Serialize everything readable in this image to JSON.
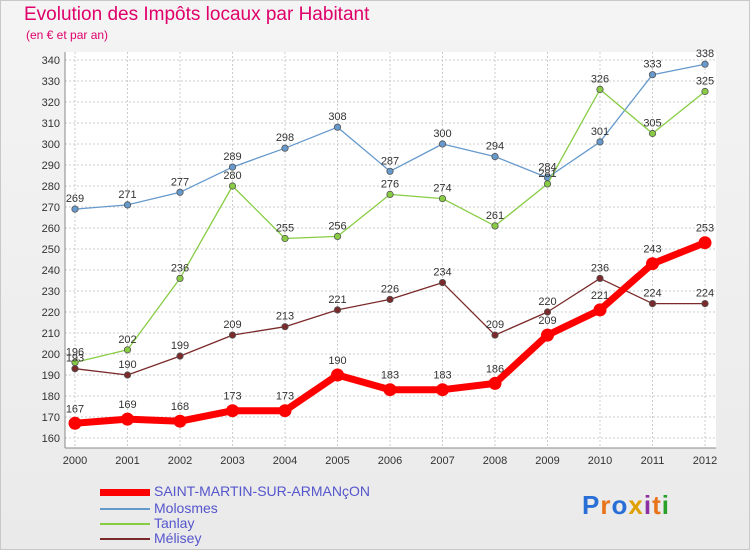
{
  "header": {
    "title": "Evolution des Impôts locaux par Habitant",
    "subtitle": "(en € et par an)"
  },
  "logo": {
    "text": "Proxiti"
  },
  "colors": {
    "title": "#e0006a",
    "main": "#ff0000",
    "molosmes": "#6699cc",
    "tanlay": "#88cc44",
    "melisey": "#7a2a2a",
    "grid": "#cccccc"
  },
  "chart_data": {
    "type": "line",
    "title": "Evolution des Impôts locaux par Habitant",
    "subtitle": "(en € et par an)",
    "xlabel": "",
    "ylabel": "",
    "ylim": [
      160,
      340
    ],
    "yticks": [
      160,
      170,
      180,
      190,
      200,
      210,
      220,
      230,
      240,
      250,
      260,
      270,
      280,
      290,
      300,
      310,
      320,
      330,
      340
    ],
    "x": [
      "2000",
      "2001",
      "2002",
      "2003",
      "2004",
      "2005",
      "2006",
      "2007",
      "2008",
      "2009",
      "2010",
      "2011",
      "2012"
    ],
    "grid": true,
    "legend_position": "bottom-left",
    "series": [
      {
        "name": "SAINT-MARTIN-SUR-ARMANçON",
        "color": "#ff0000",
        "values": [
          167,
          169,
          168,
          173,
          173,
          190,
          183,
          183,
          186,
          209,
          221,
          243,
          253
        ]
      },
      {
        "name": "Molosmes",
        "color": "#6699cc",
        "values": [
          269,
          271,
          277,
          289,
          298,
          308,
          287,
          300,
          294,
          284,
          301,
          333,
          338
        ]
      },
      {
        "name": "Tanlay",
        "color": "#88cc44",
        "values": [
          196,
          202,
          236,
          280,
          255,
          256,
          276,
          274,
          261,
          281,
          326,
          305,
          325
        ]
      },
      {
        "name": "Mélisey",
        "color": "#7a2a2a",
        "values": [
          193,
          190,
          199,
          209,
          213,
          221,
          226,
          234,
          209,
          220,
          236,
          224,
          224
        ]
      }
    ]
  }
}
